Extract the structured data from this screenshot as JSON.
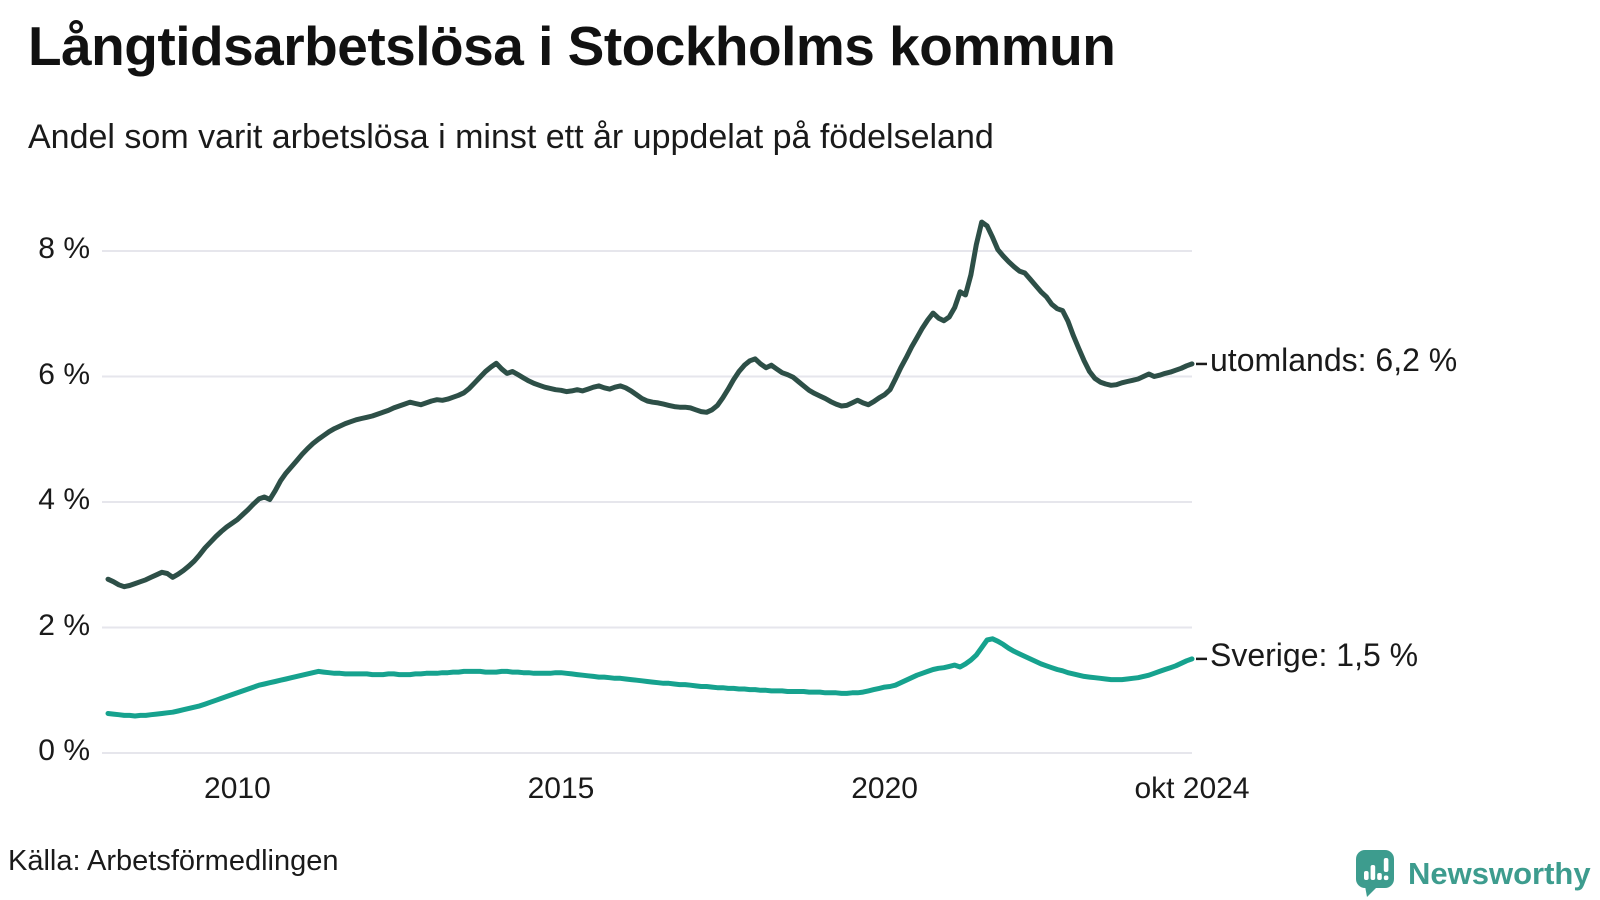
{
  "header": {
    "title": "Långtidsarbetslösa i Stockholms kommun",
    "subtitle": "Andel som varit arbetslösa i minst ett år uppdelat på födelseland"
  },
  "footer": {
    "source": "Källa: Arbetsförmedlingen",
    "logo_text": "Newsworthy"
  },
  "colors": {
    "brand": "#3d9c8e",
    "series_utomlands": "#2d4f47",
    "series_sverige": "#16a28e",
    "text": "#1a1a1a",
    "gridline": "#e6e6ec"
  },
  "chart_data": {
    "type": "line",
    "title": "Långtidsarbetslösa i Stockholms kommun",
    "subtitle": "Andel som varit arbetslösa i minst ett år uppdelat på födelseland",
    "x_unit": "month",
    "x_start": "2008-01",
    "x_end": "2024-10",
    "ylim": [
      0,
      8.6
    ],
    "grid": "horizontal",
    "legend_position": "end-of-line-labels",
    "y_ticks": [
      {
        "label": "0 %",
        "value": 0
      },
      {
        "label": "2 %",
        "value": 2
      },
      {
        "label": "4 %",
        "value": 4
      },
      {
        "label": "6 %",
        "value": 6
      },
      {
        "label": "8 %",
        "value": 8
      }
    ],
    "x_ticks": [
      {
        "label": "2010",
        "month_index": 24
      },
      {
        "label": "2015",
        "month_index": 84
      },
      {
        "label": "2020",
        "month_index": 144
      },
      {
        "label": "okt 2024",
        "month_index": 201
      }
    ],
    "series": [
      {
        "name": "utomlands",
        "end_label": "utomlands: 6,2 %",
        "last_value_display": "6,2 %",
        "color": "#2d4f47",
        "values": [
          2.77,
          2.73,
          2.68,
          2.65,
          2.67,
          2.7,
          2.73,
          2.76,
          2.8,
          2.84,
          2.88,
          2.86,
          2.8,
          2.85,
          2.91,
          2.98,
          3.06,
          3.16,
          3.27,
          3.36,
          3.45,
          3.53,
          3.6,
          3.66,
          3.72,
          3.8,
          3.88,
          3.97,
          4.05,
          4.08,
          4.04,
          4.18,
          4.34,
          4.46,
          4.56,
          4.66,
          4.76,
          4.85,
          4.93,
          5.0,
          5.06,
          5.12,
          5.17,
          5.21,
          5.25,
          5.28,
          5.31,
          5.33,
          5.35,
          5.37,
          5.4,
          5.43,
          5.46,
          5.5,
          5.53,
          5.56,
          5.59,
          5.57,
          5.55,
          5.58,
          5.61,
          5.63,
          5.62,
          5.64,
          5.67,
          5.7,
          5.74,
          5.81,
          5.9,
          5.99,
          6.08,
          6.15,
          6.21,
          6.12,
          6.05,
          6.08,
          6.03,
          5.98,
          5.93,
          5.89,
          5.86,
          5.83,
          5.81,
          5.79,
          5.78,
          5.76,
          5.77,
          5.79,
          5.77,
          5.8,
          5.83,
          5.85,
          5.82,
          5.8,
          5.83,
          5.85,
          5.82,
          5.77,
          5.71,
          5.65,
          5.61,
          5.59,
          5.58,
          5.56,
          5.54,
          5.52,
          5.51,
          5.51,
          5.5,
          5.47,
          5.44,
          5.43,
          5.47,
          5.54,
          5.66,
          5.8,
          5.95,
          6.08,
          6.18,
          6.25,
          6.28,
          6.2,
          6.14,
          6.18,
          6.12,
          6.06,
          6.03,
          5.99,
          5.92,
          5.85,
          5.78,
          5.73,
          5.69,
          5.65,
          5.6,
          5.56,
          5.53,
          5.54,
          5.58,
          5.62,
          5.58,
          5.55,
          5.6,
          5.66,
          5.71,
          5.79,
          5.96,
          6.14,
          6.3,
          6.47,
          6.62,
          6.77,
          6.9,
          7.01,
          6.93,
          6.89,
          6.95,
          7.1,
          7.35,
          7.3,
          7.62,
          8.1,
          8.46,
          8.4,
          8.22,
          8.02,
          7.92,
          7.83,
          7.75,
          7.68,
          7.65,
          7.55,
          7.45,
          7.35,
          7.27,
          7.15,
          7.08,
          7.05,
          6.88,
          6.65,
          6.45,
          6.25,
          6.08,
          5.97,
          5.91,
          5.88,
          5.86,
          5.87,
          5.9,
          5.92,
          5.94,
          5.96,
          6.0,
          6.04,
          6.0,
          6.02,
          6.05,
          6.07,
          6.1,
          6.13,
          6.17,
          6.2
        ]
      },
      {
        "name": "Sverige",
        "end_label": "Sverige: 1,5 %",
        "last_value_display": "1,5 %",
        "color": "#16a28e",
        "values": [
          0.63,
          0.62,
          0.61,
          0.6,
          0.6,
          0.59,
          0.6,
          0.6,
          0.61,
          0.62,
          0.63,
          0.64,
          0.65,
          0.67,
          0.69,
          0.71,
          0.73,
          0.75,
          0.78,
          0.81,
          0.84,
          0.87,
          0.9,
          0.93,
          0.96,
          0.99,
          1.02,
          1.05,
          1.08,
          1.1,
          1.12,
          1.14,
          1.16,
          1.18,
          1.2,
          1.22,
          1.24,
          1.26,
          1.28,
          1.3,
          1.29,
          1.28,
          1.27,
          1.27,
          1.26,
          1.26,
          1.26,
          1.26,
          1.26,
          1.25,
          1.25,
          1.25,
          1.26,
          1.26,
          1.25,
          1.25,
          1.25,
          1.26,
          1.26,
          1.27,
          1.27,
          1.27,
          1.28,
          1.28,
          1.29,
          1.29,
          1.3,
          1.3,
          1.3,
          1.3,
          1.29,
          1.29,
          1.29,
          1.3,
          1.3,
          1.29,
          1.29,
          1.28,
          1.28,
          1.27,
          1.27,
          1.27,
          1.27,
          1.28,
          1.28,
          1.27,
          1.26,
          1.25,
          1.24,
          1.23,
          1.22,
          1.21,
          1.21,
          1.2,
          1.19,
          1.19,
          1.18,
          1.17,
          1.16,
          1.15,
          1.14,
          1.13,
          1.12,
          1.11,
          1.11,
          1.1,
          1.09,
          1.09,
          1.08,
          1.07,
          1.06,
          1.06,
          1.05,
          1.04,
          1.04,
          1.03,
          1.03,
          1.02,
          1.02,
          1.01,
          1.01,
          1.0,
          1.0,
          0.99,
          0.99,
          0.99,
          0.98,
          0.98,
          0.98,
          0.98,
          0.97,
          0.97,
          0.97,
          0.96,
          0.96,
          0.96,
          0.95,
          0.95,
          0.96,
          0.96,
          0.97,
          0.99,
          1.01,
          1.03,
          1.05,
          1.06,
          1.08,
          1.12,
          1.16,
          1.2,
          1.24,
          1.27,
          1.3,
          1.33,
          1.35,
          1.36,
          1.38,
          1.4,
          1.37,
          1.42,
          1.48,
          1.56,
          1.68,
          1.8,
          1.82,
          1.78,
          1.73,
          1.67,
          1.62,
          1.58,
          1.54,
          1.5,
          1.46,
          1.42,
          1.39,
          1.36,
          1.33,
          1.31,
          1.28,
          1.26,
          1.24,
          1.22,
          1.21,
          1.2,
          1.19,
          1.18,
          1.17,
          1.17,
          1.17,
          1.18,
          1.19,
          1.2,
          1.22,
          1.24,
          1.27,
          1.3,
          1.33,
          1.36,
          1.39,
          1.43,
          1.47,
          1.5
        ]
      }
    ]
  }
}
